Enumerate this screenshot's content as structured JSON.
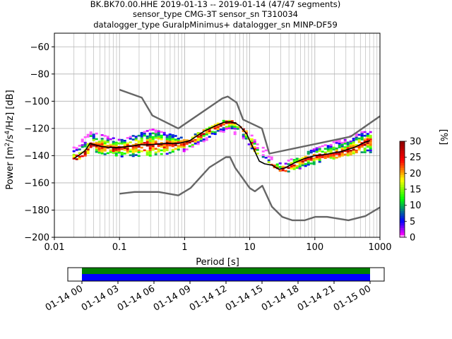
{
  "chart_data": {
    "type": "heatmap",
    "title_lines": [
      "BK.BK70.00.HHE   2019-01-13 -- 2019-01-14  (47/47 segments)",
      "sensor_type CMG-3T sensor_sn T310034",
      "datalogger_type GuralpMinimus+ datalogger_sn MINP-DF59"
    ],
    "xlabel": "Period [s]",
    "ylabel_parts": [
      "Power [m",
      "2",
      "/s",
      "4",
      "/Hz] [dB]"
    ],
    "xscale": "log",
    "xlim": [
      0.01,
      1000
    ],
    "ylim": [
      -200,
      -50
    ],
    "xticks": [
      {
        "value": 0.01,
        "label": "0.01"
      },
      {
        "value": 0.1,
        "label": "0.1"
      },
      {
        "value": 1,
        "label": "1"
      },
      {
        "value": 10,
        "label": "10"
      },
      {
        "value": 100,
        "label": "100"
      },
      {
        "value": 1000,
        "label": "1000"
      }
    ],
    "yticks": [
      {
        "value": -60,
        "label": "−60"
      },
      {
        "value": -80,
        "label": "−80"
      },
      {
        "value": -100,
        "label": "−100"
      },
      {
        "value": -120,
        "label": "−120"
      },
      {
        "value": -140,
        "label": "−140"
      },
      {
        "value": -160,
        "label": "−160"
      },
      {
        "value": -180,
        "label": "−180"
      },
      {
        "value": -200,
        "label": "−200"
      }
    ],
    "grid": true,
    "nhnm": [
      [
        0.1,
        -91.5
      ],
      [
        0.22,
        -97.4
      ],
      [
        0.32,
        -110.5
      ],
      [
        0.8,
        -120
      ],
      [
        3.8,
        -97.9
      ],
      [
        4.6,
        -96.5
      ],
      [
        6.3,
        -101
      ],
      [
        7.9,
        -113.5
      ],
      [
        15.4,
        -120
      ],
      [
        20,
        -138.5
      ],
      [
        354.8,
        -126
      ],
      [
        1000,
        -111
      ]
    ],
    "nlnm": [
      [
        0.1,
        -168
      ],
      [
        0.17,
        -166.7
      ],
      [
        0.4,
        -166.7
      ],
      [
        0.8,
        -169.2
      ],
      [
        1.24,
        -163.7
      ],
      [
        2.4,
        -148.6
      ],
      [
        4.3,
        -141.1
      ],
      [
        5,
        -141.1
      ],
      [
        6,
        -149
      ],
      [
        10,
        -163.8
      ],
      [
        12,
        -166.2
      ],
      [
        15.6,
        -162.1
      ],
      [
        21.9,
        -177.5
      ],
      [
        31.6,
        -185
      ],
      [
        45,
        -187.5
      ],
      [
        70,
        -187.5
      ],
      [
        101,
        -185
      ],
      [
        154,
        -185
      ],
      [
        328,
        -187.5
      ],
      [
        600,
        -184.4
      ],
      [
        1000,
        -178
      ]
    ],
    "mean_curve": [
      [
        0.02,
        -142
      ],
      [
        0.025,
        -139
      ],
      [
        0.03,
        -136
      ],
      [
        0.035,
        -131
      ],
      [
        0.05,
        -133
      ],
      [
        0.07,
        -134
      ],
      [
        0.1,
        -134
      ],
      [
        0.15,
        -133
      ],
      [
        0.2,
        -132
      ],
      [
        0.3,
        -132
      ],
      [
        0.5,
        -131
      ],
      [
        0.8,
        -131
      ],
      [
        1.2,
        -129
      ],
      [
        1.6,
        -125
      ],
      [
        2,
        -122
      ],
      [
        3,
        -118
      ],
      [
        4,
        -115.5
      ],
      [
        5,
        -115
      ],
      [
        6,
        -116
      ],
      [
        7,
        -118
      ],
      [
        9,
        -124
      ],
      [
        10,
        -129
      ],
      [
        12,
        -137
      ],
      [
        14,
        -144
      ],
      [
        17,
        -146
      ],
      [
        22,
        -147
      ],
      [
        28,
        -150
      ],
      [
        35,
        -149
      ],
      [
        50,
        -145
      ],
      [
        70,
        -142
      ],
      [
        100,
        -140
      ],
      [
        150,
        -139
      ],
      [
        250,
        -137
      ],
      [
        400,
        -134
      ],
      [
        600,
        -130
      ],
      [
        700,
        -129
      ]
    ],
    "psd_spread": [
      {
        "period": 0.02,
        "low": -144,
        "high": -132
      },
      {
        "period": 0.035,
        "low": -137,
        "high": -122
      },
      {
        "period": 0.1,
        "low": -140,
        "high": -128
      },
      {
        "period": 0.3,
        "low": -140,
        "high": -120
      },
      {
        "period": 1,
        "low": -136,
        "high": -127
      },
      {
        "period": 4.5,
        "low": -120,
        "high": -112
      },
      {
        "period": 10,
        "low": -134,
        "high": -124
      },
      {
        "period": 30,
        "low": -153,
        "high": -145
      },
      {
        "period": 100,
        "low": -145,
        "high": -134
      },
      {
        "period": 500,
        "low": -137,
        "high": -122
      }
    ],
    "colorbar": {
      "label": "[%]",
      "min": 0,
      "max": 30,
      "ticks": [
        {
          "value": 0,
          "label": "0"
        },
        {
          "value": 5,
          "label": "5"
        },
        {
          "value": 10,
          "label": "10"
        },
        {
          "value": 15,
          "label": "15"
        },
        {
          "value": 20,
          "label": "20"
        },
        {
          "value": 25,
          "label": "25"
        },
        {
          "value": 30,
          "label": "30"
        }
      ]
    },
    "timeline": {
      "ticks": [
        "01-14 00",
        "01-14 03",
        "01-14 06",
        "01-14 09",
        "01-14 12",
        "01-14 15",
        "01-14 18",
        "01-14 21",
        "01-15 00"
      ],
      "coverage_hours": [
        0,
        24
      ]
    },
    "colors": {
      "noise_models": "#666666",
      "mean": "#000000",
      "grid": "#b0b0b0",
      "coverage_top": "#008000",
      "coverage_bottom": "#0000ff"
    }
  }
}
